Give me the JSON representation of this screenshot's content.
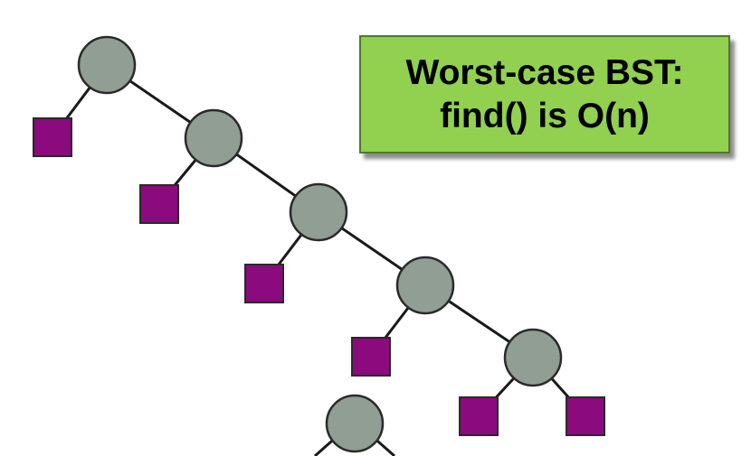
{
  "callout": {
    "line1": "Worst-case BST:",
    "line2": "find() is O(n)"
  },
  "colors": {
    "node_fill": "#909e94",
    "node_stroke": "#2a2a2a",
    "leaf_fill": "#8b0a7d",
    "edge": "#1a1a1a",
    "callout_fill": "#92d050"
  },
  "tree": {
    "internal_nodes": 6,
    "external_leaves": 6,
    "shape": "right-skewed chain (degenerate BST)"
  }
}
